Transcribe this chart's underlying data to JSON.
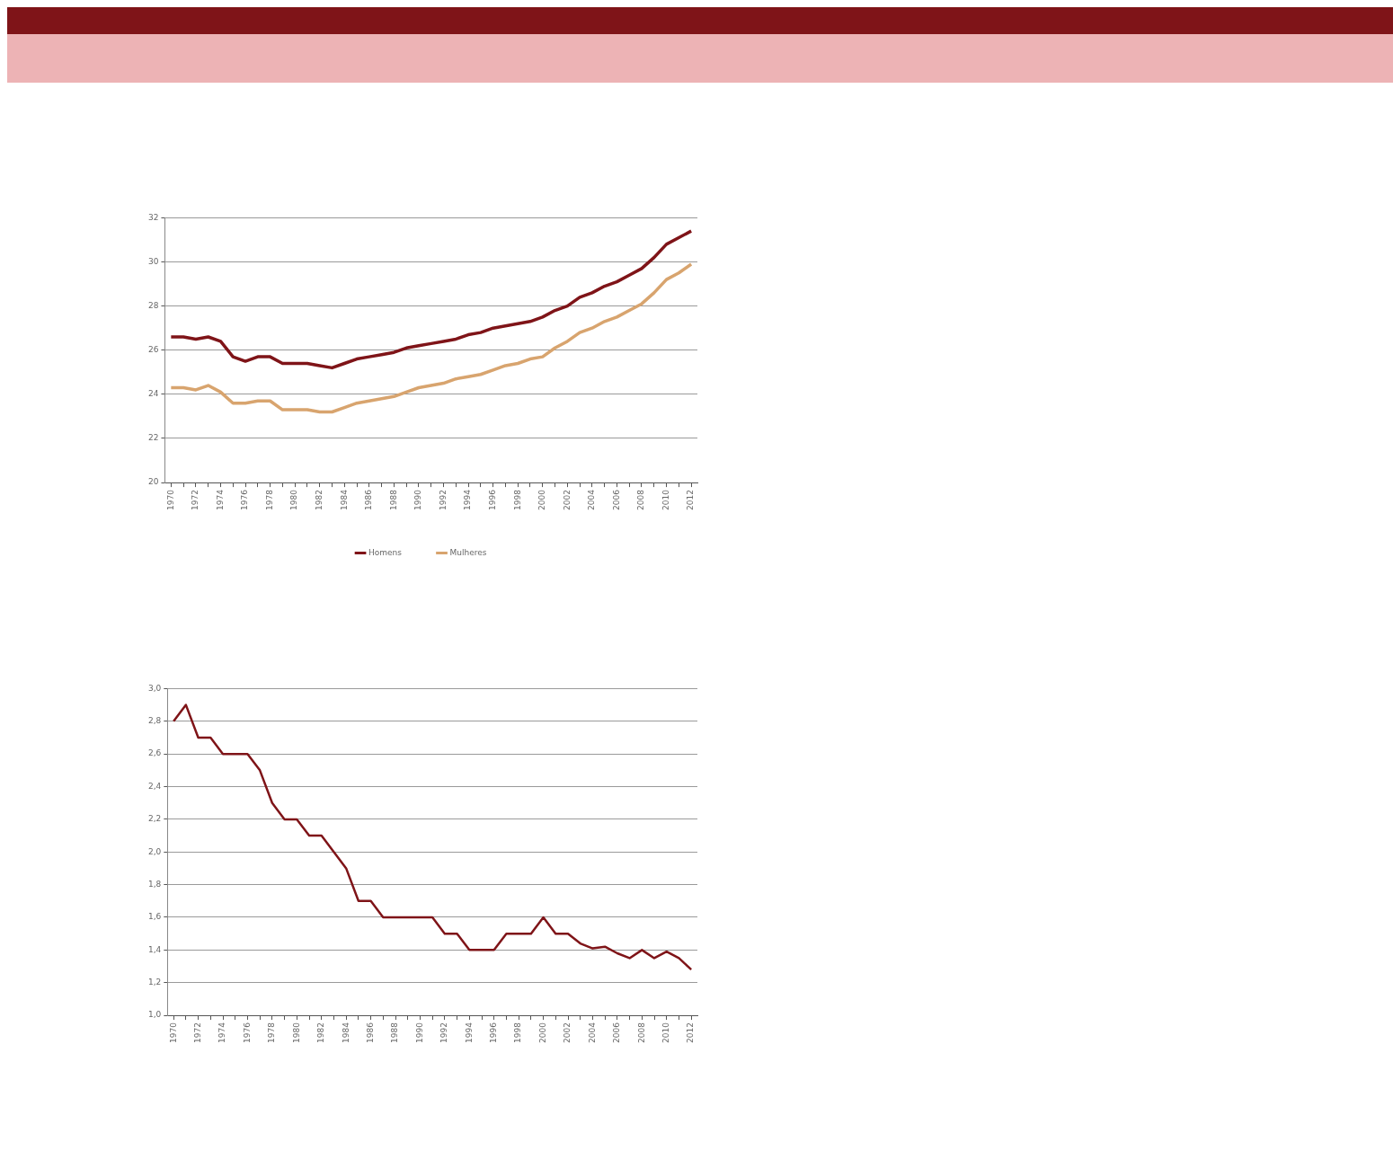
{
  "chart_data": [
    {
      "type": "line",
      "categories": [
        "1970",
        null,
        "1972",
        null,
        "1974",
        null,
        "1976",
        null,
        "1978",
        null,
        "1980",
        null,
        "1982",
        null,
        "1984",
        null,
        "1986",
        null,
        "1988",
        null,
        "1990",
        null,
        "1992",
        null,
        "1994",
        null,
        "1996",
        null,
        "1998",
        null,
        "2000",
        null,
        "2002",
        null,
        "2004",
        null,
        "2006",
        null,
        "2008",
        null,
        "2010",
        null,
        "2012"
      ],
      "series": [
        {
          "name": "Homens",
          "color": "#7f1418",
          "values": [
            26.6,
            26.6,
            26.5,
            26.6,
            26.4,
            25.7,
            25.5,
            25.7,
            25.7,
            25.4,
            25.4,
            25.4,
            25.3,
            25.2,
            25.4,
            25.6,
            25.7,
            25.8,
            25.9,
            26.1,
            26.2,
            26.3,
            26.4,
            26.5,
            26.7,
            26.8,
            27.0,
            27.1,
            27.2,
            27.3,
            27.5,
            27.8,
            28.0,
            28.4,
            28.6,
            28.9,
            29.1,
            29.4,
            29.7,
            30.2,
            30.8,
            31.1,
            31.4
          ]
        },
        {
          "name": "Mulheres",
          "color": "#d8a46e",
          "values": [
            24.3,
            24.3,
            24.2,
            24.4,
            24.1,
            23.6,
            23.6,
            23.7,
            23.7,
            23.3,
            23.3,
            23.3,
            23.2,
            23.2,
            23.4,
            23.6,
            23.7,
            23.8,
            23.9,
            24.1,
            24.3,
            24.4,
            24.5,
            24.7,
            24.8,
            24.9,
            25.1,
            25.3,
            25.4,
            25.6,
            25.7,
            26.1,
            26.4,
            26.8,
            27.0,
            27.3,
            27.5,
            27.8,
            28.1,
            28.6,
            29.2,
            29.5,
            29.9
          ]
        }
      ],
      "ylim": [
        20,
        32
      ],
      "yticks": [
        20,
        22,
        24,
        26,
        28,
        30,
        32
      ],
      "grid": "y",
      "legend": "bottom",
      "marker": "none",
      "line_style": "solid"
    },
    {
      "type": "line",
      "categories": [
        "1970",
        null,
        "1972",
        null,
        "1974",
        null,
        "1976",
        null,
        "1978",
        null,
        "1980",
        null,
        "1982",
        null,
        "1984",
        null,
        "1986",
        null,
        "1988",
        null,
        "1990",
        null,
        "1992",
        null,
        "1994",
        null,
        "1996",
        null,
        "1998",
        null,
        "2000",
        null,
        "2002",
        null,
        "2004",
        null,
        "2006",
        null,
        "2008",
        null,
        "2010",
        null,
        "2012"
      ],
      "series": [
        {
          "color": "#7f1418",
          "values": [
            2.8,
            2.9,
            2.7,
            2.7,
            2.6,
            2.6,
            2.6,
            2.5,
            2.3,
            2.2,
            2.2,
            2.1,
            2.1,
            2.0,
            1.9,
            1.7,
            1.7,
            1.6,
            1.6,
            1.6,
            1.6,
            1.6,
            1.5,
            1.5,
            1.4,
            1.4,
            1.4,
            1.5,
            1.5,
            1.5,
            1.6,
            1.5,
            1.5,
            1.44,
            1.41,
            1.42,
            1.38,
            1.35,
            1.4,
            1.35,
            1.39,
            1.35,
            1.28
          ]
        }
      ],
      "ylim": [
        1.0,
        3.0
      ],
      "yticks": [
        {
          "value": 1.0,
          "label": "1,0"
        },
        {
          "value": 1.2,
          "label": "1,2"
        },
        {
          "value": 1.4,
          "label": "1,4"
        },
        {
          "value": 1.6,
          "label": "1,6"
        },
        {
          "value": 1.8,
          "label": "1,8"
        },
        {
          "value": 2.0,
          "label": "2,0"
        },
        {
          "value": 2.2,
          "label": "2,2"
        },
        {
          "value": 2.4,
          "label": "2,4"
        },
        {
          "value": 2.6,
          "label": "2,6"
        },
        {
          "value": 2.8,
          "label": "2,8"
        },
        {
          "value": 3.0,
          "label": "3,0"
        }
      ],
      "grid": "y",
      "marker": "none",
      "line_style": "solid"
    }
  ]
}
